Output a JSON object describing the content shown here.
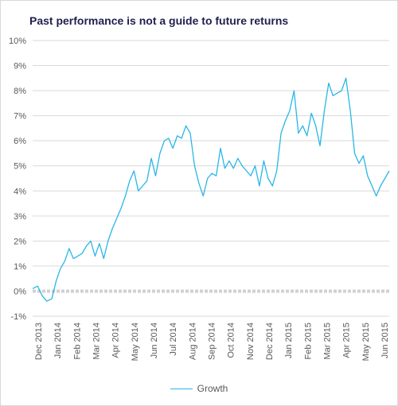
{
  "chart_data": {
    "type": "line",
    "title": "Past performance is not a guide to future returns",
    "xlabel": "",
    "ylabel": "",
    "y_ticks": [
      "-1%",
      "0%",
      "1%",
      "2%",
      "3%",
      "4%",
      "5%",
      "6%",
      "7%",
      "8%",
      "9%",
      "10%"
    ],
    "ylim": [
      -1,
      10
    ],
    "x_ticks": [
      "Dec 2013",
      "Jan 2014",
      "Feb 2014",
      "Mar 2014",
      "Apr 2014",
      "May 2014",
      "Jun 2014",
      "Jul 2014",
      "Aug 2014",
      "Sep 2014",
      "Oct 2014",
      "Nov 2014",
      "Dec 2014",
      "Jan 2015",
      "Feb 2015",
      "Mar 2015",
      "Apr 2015",
      "May 2015",
      "Jun 2015"
    ],
    "grid": true,
    "legend_position": "bottom",
    "series": [
      {
        "name": "Growth",
        "color": "#29b6e6",
        "x": [
          "2013-12-01",
          "2013-12-09",
          "2013-12-17",
          "2013-12-24",
          "2014-01-01",
          "2014-01-08",
          "2014-01-15",
          "2014-01-22",
          "2014-01-29",
          "2014-02-05",
          "2014-02-12",
          "2014-02-19",
          "2014-02-26",
          "2014-03-05",
          "2014-03-12",
          "2014-03-19",
          "2014-03-26",
          "2014-04-02",
          "2014-04-09",
          "2014-04-16",
          "2014-04-23",
          "2014-04-30",
          "2014-05-07",
          "2014-05-14",
          "2014-05-21",
          "2014-05-28",
          "2014-06-04",
          "2014-06-11",
          "2014-06-18",
          "2014-06-25",
          "2014-07-02",
          "2014-07-09",
          "2014-07-16",
          "2014-07-23",
          "2014-07-30",
          "2014-08-06",
          "2014-08-13",
          "2014-08-20",
          "2014-08-27",
          "2014-09-03",
          "2014-09-10",
          "2014-09-17",
          "2014-09-24",
          "2014-10-01",
          "2014-10-08",
          "2014-10-15",
          "2014-10-22",
          "2014-10-29",
          "2014-11-05",
          "2014-11-12",
          "2014-11-19",
          "2014-11-26",
          "2014-12-03",
          "2014-12-10",
          "2014-12-17",
          "2014-12-24",
          "2014-12-31",
          "2015-01-07",
          "2015-01-14",
          "2015-01-21",
          "2015-01-28",
          "2015-02-04",
          "2015-02-11",
          "2015-02-18",
          "2015-02-25",
          "2015-03-04",
          "2015-03-11",
          "2015-03-18",
          "2015-03-25",
          "2015-04-01",
          "2015-04-08",
          "2015-04-15",
          "2015-04-22",
          "2015-04-29",
          "2015-05-06",
          "2015-05-13",
          "2015-05-20",
          "2015-05-27",
          "2015-06-03",
          "2015-06-10",
          "2015-06-17",
          "2015-06-24",
          "2015-07-01"
        ],
        "values": [
          0.1,
          0.2,
          -0.2,
          -0.4,
          -0.3,
          0.4,
          0.9,
          1.2,
          1.7,
          1.3,
          1.4,
          1.5,
          1.8,
          2.0,
          1.4,
          1.9,
          1.3,
          2.0,
          2.5,
          2.9,
          3.3,
          3.8,
          4.4,
          4.8,
          4.0,
          4.2,
          4.4,
          5.3,
          4.6,
          5.5,
          6.0,
          6.1,
          5.7,
          6.2,
          6.1,
          6.6,
          6.3,
          5.0,
          4.3,
          3.8,
          4.5,
          4.7,
          4.6,
          5.7,
          4.9,
          5.2,
          4.9,
          5.3,
          5.0,
          4.8,
          4.6,
          5.0,
          4.2,
          5.2,
          4.5,
          4.2,
          4.8,
          6.3,
          6.8,
          7.2,
          8.0,
          6.3,
          6.6,
          6.2,
          7.1,
          6.6,
          5.8,
          7.2,
          8.3,
          7.8,
          7.9,
          8.0,
          8.5,
          7.2,
          5.5,
          5.1,
          5.4,
          4.6,
          4.2,
          3.8,
          4.2,
          4.5,
          4.8
        ]
      }
    ]
  }
}
